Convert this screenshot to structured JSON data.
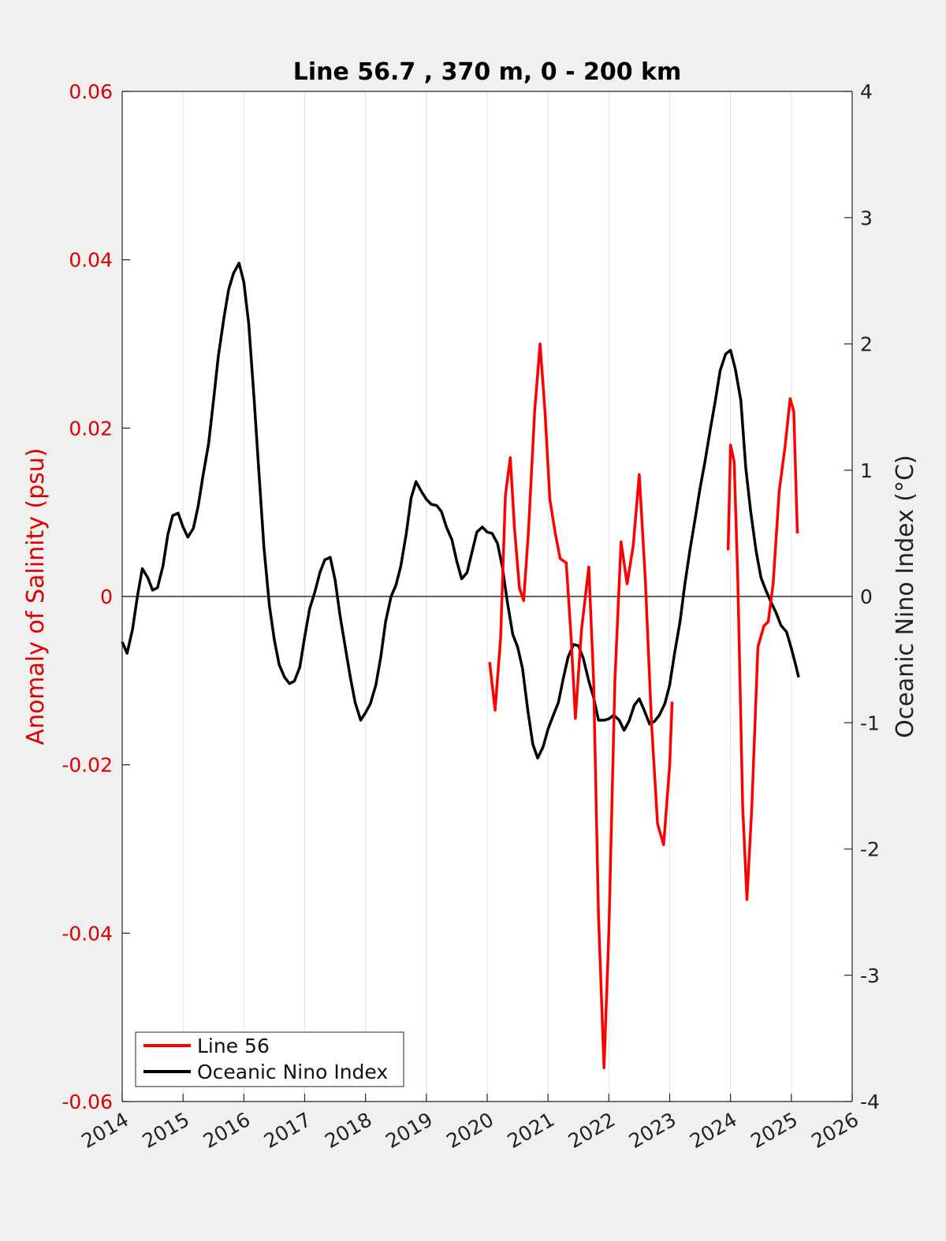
{
  "chart_data": {
    "type": "line",
    "title": "Line 56.7 , 370 m, 0 - 200 km",
    "ylabel_left": "Anomaly of Salinity (psu)",
    "ylabel_right": "Oceanic Nino Index (°C)",
    "xlim": [
      2014,
      2026
    ],
    "ylim_left": [
      -0.06,
      0.06
    ],
    "ylim_right": [
      -4,
      4
    ],
    "x_ticks": [
      "2014",
      "2015",
      "2016",
      "2017",
      "2018",
      "2019",
      "2020",
      "2021",
      "2022",
      "2023",
      "2024",
      "2025",
      "2026"
    ],
    "x_tick_values": [
      2014,
      2015,
      2016,
      2017,
      2018,
      2019,
      2020,
      2021,
      2022,
      2023,
      2024,
      2025,
      2026
    ],
    "y_left_ticks": [
      "-0.06",
      "-0.04",
      "-0.02",
      "0",
      "0.02",
      "0.04",
      "0.06"
    ],
    "y_left_tick_values": [
      -0.06,
      -0.04,
      -0.02,
      0,
      0.02,
      0.04,
      0.06
    ],
    "y_right_ticks": [
      "-4",
      "-3",
      "-2",
      "-1",
      "0",
      "1",
      "2",
      "3",
      "4"
    ],
    "y_right_tick_values": [
      -4,
      -3,
      -2,
      -1,
      0,
      1,
      2,
      3,
      4
    ],
    "grid": "vertical",
    "legend_position": "bottom-left",
    "colors": {
      "left_axis": "#e00000",
      "salinity": "#ff0000",
      "oni": "#000000"
    },
    "series": [
      {
        "name": "Line 56",
        "axis": "left",
        "segments": [
          [
            [
              2020.04,
              -0.0078
            ],
            [
              2020.13,
              -0.0135
            ],
            [
              2020.22,
              -0.005
            ],
            [
              2020.3,
              0.012
            ],
            [
              2020.38,
              0.0165
            ],
            [
              2020.45,
              0.008
            ],
            [
              2020.53,
              0.001
            ],
            [
              2020.6,
              -0.0005
            ],
            [
              2020.68,
              0.008
            ],
            [
              2020.78,
              0.022
            ],
            [
              2020.87,
              0.03
            ],
            [
              2020.95,
              0.022
            ],
            [
              2021.03,
              0.0115
            ],
            [
              2021.12,
              0.0075
            ],
            [
              2021.2,
              0.0045
            ],
            [
              2021.3,
              0.004
            ],
            [
              2021.38,
              -0.005
            ],
            [
              2021.45,
              -0.0145
            ],
            [
              2021.55,
              -0.004
            ],
            [
              2021.67,
              0.0035
            ],
            [
              2021.75,
              -0.01
            ],
            [
              2021.83,
              -0.038
            ],
            [
              2021.92,
              -0.056
            ],
            [
              2022.0,
              -0.04
            ],
            [
              2022.1,
              -0.01
            ],
            [
              2022.2,
              0.0065
            ],
            [
              2022.3,
              0.0015
            ],
            [
              2022.4,
              0.006
            ],
            [
              2022.5,
              0.0145
            ],
            [
              2022.6,
              0.002
            ],
            [
              2022.7,
              -0.015
            ],
            [
              2022.8,
              -0.027
            ],
            [
              2022.9,
              -0.0295
            ],
            [
              2023.0,
              -0.02
            ],
            [
              2023.04,
              -0.0125
            ]
          ],
          [
            [
              2023.96,
              0.0055
            ],
            [
              2024.0,
              0.018
            ],
            [
              2024.06,
              0.016
            ],
            [
              2024.12,
              0.002
            ],
            [
              2024.2,
              -0.025
            ],
            [
              2024.27,
              -0.036
            ],
            [
              2024.35,
              -0.025
            ],
            [
              2024.45,
              -0.006
            ],
            [
              2024.55,
              -0.0035
            ],
            [
              2024.62,
              -0.003
            ],
            [
              2024.7,
              0.0015
            ],
            [
              2024.8,
              0.0125
            ],
            [
              2024.9,
              0.018
            ],
            [
              2024.98,
              0.0235
            ],
            [
              2025.04,
              0.022
            ],
            [
              2025.1,
              0.0075
            ]
          ]
        ]
      },
      {
        "name": "Oceanic Nino Index",
        "axis": "right",
        "points": [
          [
            2014.0,
            -0.36
          ],
          [
            2014.08,
            -0.45
          ],
          [
            2014.17,
            -0.26
          ],
          [
            2014.25,
            0.0
          ],
          [
            2014.33,
            0.22
          ],
          [
            2014.42,
            0.15
          ],
          [
            2014.5,
            0.05
          ],
          [
            2014.58,
            0.07
          ],
          [
            2014.67,
            0.24
          ],
          [
            2014.75,
            0.49
          ],
          [
            2014.83,
            0.64
          ],
          [
            2014.92,
            0.66
          ],
          [
            2015.0,
            0.55
          ],
          [
            2015.08,
            0.47
          ],
          [
            2015.17,
            0.54
          ],
          [
            2015.25,
            0.72
          ],
          [
            2015.33,
            0.96
          ],
          [
            2015.42,
            1.21
          ],
          [
            2015.5,
            1.55
          ],
          [
            2015.58,
            1.9
          ],
          [
            2015.67,
            2.2
          ],
          [
            2015.75,
            2.43
          ],
          [
            2015.83,
            2.56
          ],
          [
            2015.92,
            2.64
          ],
          [
            2016.0,
            2.49
          ],
          [
            2016.08,
            2.16
          ],
          [
            2016.17,
            1.55
          ],
          [
            2016.25,
            0.97
          ],
          [
            2016.33,
            0.39
          ],
          [
            2016.42,
            -0.07
          ],
          [
            2016.5,
            -0.34
          ],
          [
            2016.58,
            -0.54
          ],
          [
            2016.67,
            -0.64
          ],
          [
            2016.75,
            -0.69
          ],
          [
            2016.83,
            -0.67
          ],
          [
            2016.92,
            -0.56
          ],
          [
            2017.0,
            -0.32
          ],
          [
            2017.08,
            -0.1
          ],
          [
            2017.17,
            0.04
          ],
          [
            2017.25,
            0.19
          ],
          [
            2017.33,
            0.29
          ],
          [
            2017.42,
            0.31
          ],
          [
            2017.5,
            0.13
          ],
          [
            2017.58,
            -0.15
          ],
          [
            2017.67,
            -0.41
          ],
          [
            2017.75,
            -0.64
          ],
          [
            2017.83,
            -0.84
          ],
          [
            2017.92,
            -0.98
          ],
          [
            2018.0,
            -0.92
          ],
          [
            2018.08,
            -0.85
          ],
          [
            2018.17,
            -0.7
          ],
          [
            2018.25,
            -0.48
          ],
          [
            2018.33,
            -0.2
          ],
          [
            2018.42,
            0.0
          ],
          [
            2018.5,
            0.09
          ],
          [
            2018.58,
            0.24
          ],
          [
            2018.67,
            0.5
          ],
          [
            2018.75,
            0.78
          ],
          [
            2018.83,
            0.91
          ],
          [
            2018.92,
            0.83
          ],
          [
            2019.0,
            0.77
          ],
          [
            2019.08,
            0.73
          ],
          [
            2019.17,
            0.72
          ],
          [
            2019.25,
            0.67
          ],
          [
            2019.33,
            0.55
          ],
          [
            2019.42,
            0.45
          ],
          [
            2019.5,
            0.28
          ],
          [
            2019.58,
            0.14
          ],
          [
            2019.67,
            0.19
          ],
          [
            2019.75,
            0.35
          ],
          [
            2019.83,
            0.51
          ],
          [
            2019.92,
            0.55
          ],
          [
            2020.0,
            0.51
          ],
          [
            2020.08,
            0.5
          ],
          [
            2020.17,
            0.42
          ],
          [
            2020.25,
            0.23
          ],
          [
            2020.33,
            -0.04
          ],
          [
            2020.42,
            -0.3
          ],
          [
            2020.5,
            -0.4
          ],
          [
            2020.58,
            -0.57
          ],
          [
            2020.67,
            -0.91
          ],
          [
            2020.75,
            -1.17
          ],
          [
            2020.83,
            -1.28
          ],
          [
            2020.92,
            -1.19
          ],
          [
            2021.0,
            -1.05
          ],
          [
            2021.08,
            -0.95
          ],
          [
            2021.17,
            -0.84
          ],
          [
            2021.25,
            -0.65
          ],
          [
            2021.33,
            -0.48
          ],
          [
            2021.42,
            -0.38
          ],
          [
            2021.5,
            -0.39
          ],
          [
            2021.58,
            -0.49
          ],
          [
            2021.67,
            -0.67
          ],
          [
            2021.75,
            -0.8
          ],
          [
            2021.83,
            -0.98
          ],
          [
            2021.92,
            -0.98
          ],
          [
            2022.0,
            -0.97
          ],
          [
            2022.08,
            -0.94
          ],
          [
            2022.17,
            -0.98
          ],
          [
            2022.25,
            -1.06
          ],
          [
            2022.33,
            -0.99
          ],
          [
            2022.42,
            -0.86
          ],
          [
            2022.5,
            -0.81
          ],
          [
            2022.58,
            -0.9
          ],
          [
            2022.67,
            -1.01
          ],
          [
            2022.75,
            -0.99
          ],
          [
            2022.83,
            -0.94
          ],
          [
            2022.92,
            -0.85
          ],
          [
            2023.0,
            -0.7
          ],
          [
            2023.08,
            -0.45
          ],
          [
            2023.17,
            -0.2
          ],
          [
            2023.25,
            0.1
          ],
          [
            2023.33,
            0.36
          ],
          [
            2023.42,
            0.62
          ],
          [
            2023.5,
            0.86
          ],
          [
            2023.58,
            1.07
          ],
          [
            2023.67,
            1.33
          ],
          [
            2023.75,
            1.55
          ],
          [
            2023.83,
            1.79
          ],
          [
            2023.92,
            1.92
          ],
          [
            2024.0,
            1.95
          ],
          [
            2024.08,
            1.8
          ],
          [
            2024.17,
            1.55
          ],
          [
            2024.25,
            1.02
          ],
          [
            2024.33,
            0.68
          ],
          [
            2024.42,
            0.36
          ],
          [
            2024.5,
            0.15
          ],
          [
            2024.58,
            0.05
          ],
          [
            2024.67,
            -0.05
          ],
          [
            2024.75,
            -0.13
          ],
          [
            2024.83,
            -0.23
          ],
          [
            2024.92,
            -0.28
          ],
          [
            2025.0,
            -0.41
          ],
          [
            2025.08,
            -0.56
          ],
          [
            2025.12,
            -0.64
          ]
        ]
      }
    ]
  }
}
